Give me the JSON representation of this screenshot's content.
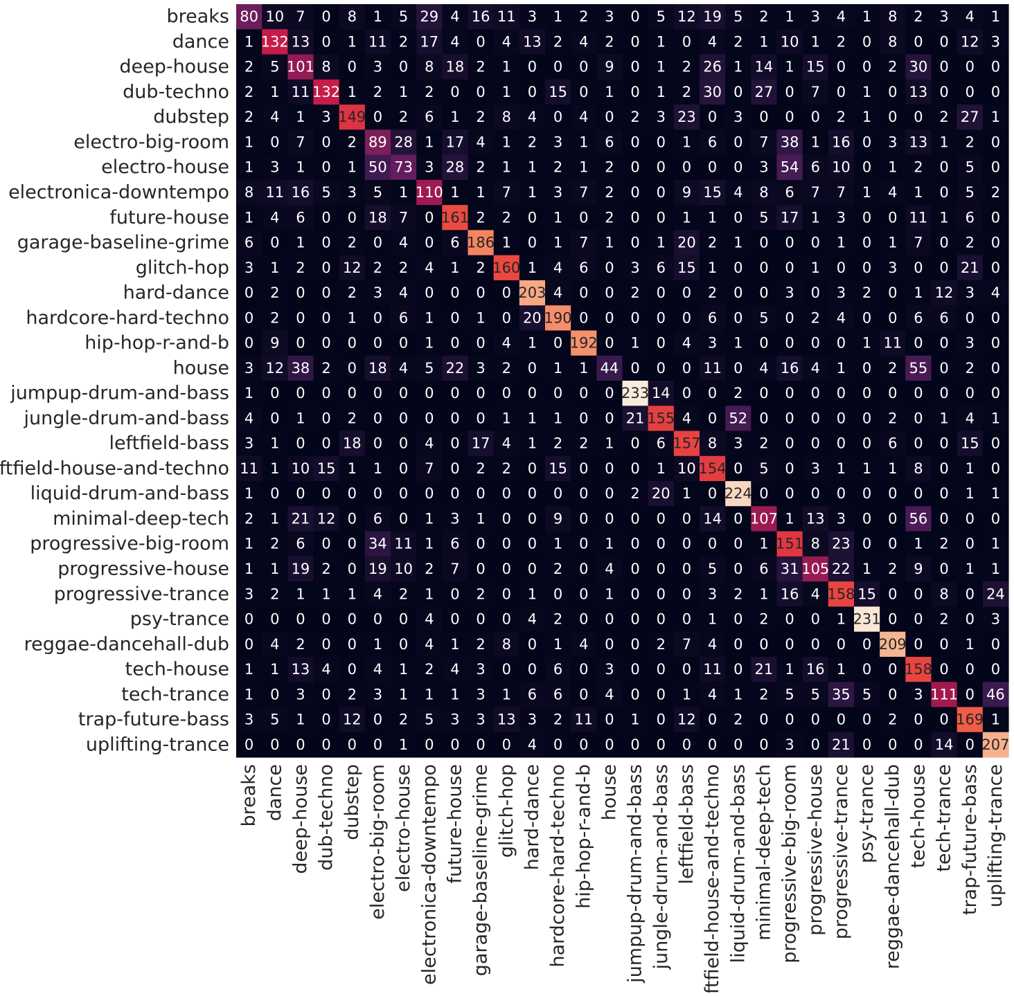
{
  "chart_data": {
    "type": "heatmap",
    "title": "",
    "xlabel": "",
    "ylabel": "",
    "colormap": "rocket",
    "colorbar": false,
    "vmin": 0,
    "vmax": 233,
    "row_labels": [
      "breaks",
      "dance",
      "deep-house",
      "dub-techno",
      "dubstep",
      "electro-big-room",
      "electro-house",
      "electronica-downtempo",
      "future-house",
      "garage-baseline-grime",
      "glitch-hop",
      "hard-dance",
      "hardcore-hard-techno",
      "hip-hop-r-and-b",
      "house",
      "jumpup-drum-and-bass",
      "jungle-drum-and-bass",
      "leftfield-bass",
      "leftfield-house-and-techno",
      "liquid-drum-and-bass",
      "minimal-deep-tech",
      "progressive-big-room",
      "progressive-house",
      "progressive-trance",
      "psy-trance",
      "reggae-dancehall-dub",
      "tech-house",
      "tech-trance",
      "trap-future-bass",
      "uplifting-trance"
    ],
    "col_labels": [
      "breaks",
      "dance",
      "deep-house",
      "dub-techno",
      "dubstep",
      "electro-big-room",
      "electro-house",
      "electronica-downtempo",
      "future-house",
      "garage-baseline-grime",
      "glitch-hop",
      "hard-dance",
      "hardcore-hard-techno",
      "hip-hop-r-and-b",
      "house",
      "jumpup-drum-and-bass",
      "jungle-drum-and-bass",
      "leftfield-bass",
      "leftfield-house-and-techno",
      "liquid-drum-and-bass",
      "minimal-deep-tech",
      "progressive-big-room",
      "progressive-house",
      "progressive-trance",
      "psy-trance",
      "reggae-dancehall-dub",
      "tech-house",
      "tech-trance",
      "trap-future-bass",
      "uplifting-trance"
    ],
    "values": [
      [
        80,
        10,
        7,
        0,
        8,
        1,
        5,
        29,
        4,
        16,
        11,
        3,
        1,
        2,
        3,
        0,
        5,
        12,
        19,
        5,
        2,
        1,
        3,
        4,
        1,
        8,
        2,
        3,
        4,
        1
      ],
      [
        1,
        132,
        13,
        0,
        1,
        11,
        2,
        17,
        4,
        0,
        4,
        13,
        2,
        4,
        2,
        0,
        1,
        0,
        4,
        2,
        1,
        10,
        1,
        2,
        0,
        8,
        0,
        0,
        12,
        3
      ],
      [
        2,
        5,
        101,
        8,
        0,
        3,
        0,
        8,
        18,
        2,
        1,
        0,
        0,
        0,
        9,
        0,
        1,
        2,
        26,
        1,
        14,
        1,
        15,
        0,
        0,
        2,
        30,
        0,
        0,
        0
      ],
      [
        2,
        1,
        11,
        132,
        1,
        2,
        1,
        2,
        0,
        0,
        1,
        0,
        15,
        0,
        1,
        0,
        1,
        2,
        30,
        0,
        27,
        0,
        7,
        0,
        1,
        0,
        13,
        0,
        0,
        0
      ],
      [
        2,
        4,
        1,
        3,
        149,
        0,
        2,
        6,
        1,
        2,
        8,
        4,
        0,
        4,
        0,
        2,
        3,
        23,
        0,
        3,
        0,
        0,
        0,
        2,
        1,
        0,
        0,
        2,
        27,
        1
      ],
      [
        1,
        0,
        7,
        0,
        2,
        89,
        28,
        1,
        17,
        4,
        1,
        2,
        3,
        1,
        6,
        0,
        0,
        1,
        6,
        0,
        7,
        38,
        1,
        16,
        0,
        3,
        13,
        1,
        2,
        0
      ],
      [
        1,
        3,
        1,
        0,
        1,
        50,
        73,
        3,
        28,
        2,
        1,
        1,
        2,
        1,
        2,
        0,
        0,
        0,
        0,
        0,
        3,
        54,
        6,
        10,
        0,
        1,
        2,
        0,
        5,
        0
      ],
      [
        8,
        11,
        16,
        5,
        3,
        5,
        1,
        110,
        1,
        1,
        7,
        1,
        3,
        7,
        2,
        0,
        0,
        9,
        15,
        4,
        8,
        6,
        7,
        7,
        1,
        4,
        1,
        0,
        5,
        2
      ],
      [
        1,
        4,
        6,
        0,
        0,
        18,
        7,
        0,
        161,
        2,
        2,
        0,
        1,
        0,
        2,
        0,
        0,
        1,
        1,
        0,
        5,
        17,
        1,
        3,
        0,
        0,
        11,
        1,
        6,
        0
      ],
      [
        6,
        0,
        1,
        0,
        2,
        0,
        4,
        0,
        6,
        186,
        1,
        0,
        1,
        7,
        1,
        0,
        1,
        20,
        2,
        1,
        0,
        0,
        0,
        1,
        0,
        1,
        7,
        0,
        2,
        0
      ],
      [
        3,
        1,
        2,
        0,
        12,
        2,
        2,
        4,
        1,
        2,
        160,
        1,
        4,
        6,
        0,
        3,
        6,
        15,
        1,
        0,
        0,
        0,
        1,
        0,
        0,
        3,
        0,
        0,
        21,
        0
      ],
      [
        0,
        2,
        0,
        0,
        2,
        3,
        4,
        0,
        0,
        0,
        0,
        203,
        4,
        0,
        0,
        2,
        0,
        0,
        2,
        0,
        0,
        3,
        0,
        3,
        2,
        0,
        1,
        12,
        3,
        4
      ],
      [
        0,
        2,
        0,
        0,
        1,
        0,
        6,
        1,
        0,
        1,
        0,
        20,
        190,
        0,
        0,
        0,
        0,
        0,
        6,
        0,
        5,
        0,
        2,
        4,
        0,
        0,
        6,
        6,
        0,
        0
      ],
      [
        0,
        9,
        0,
        0,
        0,
        0,
        0,
        1,
        0,
        0,
        4,
        1,
        0,
        192,
        0,
        1,
        0,
        4,
        3,
        1,
        0,
        0,
        0,
        0,
        1,
        11,
        0,
        0,
        3,
        0
      ],
      [
        3,
        12,
        38,
        2,
        0,
        18,
        4,
        5,
        22,
        3,
        2,
        0,
        1,
        1,
        44,
        0,
        0,
        0,
        11,
        0,
        4,
        16,
        4,
        1,
        0,
        2,
        55,
        0,
        2,
        0
      ],
      [
        1,
        0,
        0,
        0,
        0,
        0,
        0,
        0,
        0,
        0,
        0,
        0,
        0,
        0,
        0,
        233,
        14,
        0,
        0,
        2,
        0,
        0,
        0,
        0,
        0,
        0,
        0,
        0,
        0,
        0
      ],
      [
        4,
        0,
        1,
        0,
        2,
        0,
        0,
        0,
        0,
        0,
        1,
        1,
        1,
        0,
        0,
        21,
        155,
        4,
        0,
        52,
        0,
        0,
        0,
        0,
        0,
        2,
        0,
        1,
        4,
        1
      ],
      [
        3,
        1,
        0,
        0,
        18,
        0,
        0,
        4,
        0,
        17,
        4,
        1,
        2,
        2,
        1,
        0,
        6,
        157,
        8,
        3,
        2,
        0,
        0,
        0,
        0,
        6,
        0,
        0,
        15,
        0
      ],
      [
        11,
        1,
        10,
        15,
        1,
        1,
        0,
        7,
        0,
        2,
        2,
        0,
        15,
        0,
        0,
        0,
        1,
        10,
        154,
        0,
        5,
        0,
        3,
        1,
        1,
        1,
        8,
        0,
        1,
        0
      ],
      [
        1,
        0,
        0,
        0,
        0,
        0,
        0,
        0,
        0,
        0,
        0,
        0,
        0,
        0,
        0,
        2,
        20,
        1,
        0,
        224,
        0,
        0,
        0,
        0,
        0,
        0,
        0,
        0,
        1,
        1
      ],
      [
        2,
        1,
        21,
        12,
        0,
        6,
        0,
        1,
        3,
        1,
        0,
        0,
        9,
        0,
        0,
        0,
        0,
        0,
        14,
        0,
        107,
        1,
        13,
        3,
        0,
        0,
        56,
        0,
        0,
        0
      ],
      [
        1,
        2,
        6,
        0,
        0,
        34,
        11,
        1,
        6,
        0,
        0,
        0,
        1,
        0,
        1,
        0,
        0,
        0,
        0,
        0,
        1,
        151,
        8,
        23,
        0,
        0,
        1,
        2,
        0,
        1
      ],
      [
        1,
        1,
        19,
        2,
        0,
        19,
        10,
        2,
        7,
        0,
        0,
        0,
        2,
        0,
        4,
        0,
        0,
        0,
        5,
        0,
        6,
        31,
        105,
        22,
        1,
        2,
        9,
        0,
        1,
        1
      ],
      [
        3,
        2,
        1,
        1,
        1,
        4,
        2,
        1,
        0,
        2,
        0,
        1,
        0,
        0,
        1,
        0,
        0,
        0,
        3,
        2,
        1,
        16,
        4,
        158,
        15,
        0,
        0,
        8,
        0,
        24
      ],
      [
        0,
        0,
        0,
        0,
        0,
        0,
        0,
        4,
        0,
        0,
        0,
        4,
        2,
        0,
        0,
        0,
        0,
        0,
        1,
        0,
        2,
        0,
        0,
        1,
        231,
        0,
        0,
        2,
        0,
        3
      ],
      [
        0,
        4,
        2,
        0,
        0,
        1,
        0,
        4,
        1,
        2,
        8,
        0,
        1,
        4,
        0,
        0,
        2,
        7,
        4,
        0,
        0,
        0,
        0,
        0,
        0,
        209,
        0,
        0,
        1,
        0
      ],
      [
        1,
        1,
        13,
        4,
        0,
        4,
        1,
        2,
        4,
        3,
        0,
        0,
        6,
        0,
        3,
        0,
        0,
        0,
        11,
        0,
        21,
        1,
        16,
        1,
        0,
        0,
        158,
        0,
        0,
        0
      ],
      [
        1,
        0,
        3,
        0,
        2,
        3,
        1,
        1,
        1,
        3,
        1,
        6,
        6,
        0,
        4,
        0,
        0,
        1,
        4,
        1,
        2,
        5,
        5,
        35,
        5,
        0,
        3,
        111,
        0,
        46
      ],
      [
        3,
        5,
        1,
        0,
        12,
        0,
        2,
        5,
        3,
        3,
        13,
        3,
        2,
        11,
        0,
        1,
        0,
        12,
        0,
        2,
        0,
        0,
        0,
        0,
        0,
        2,
        0,
        0,
        169,
        1
      ],
      [
        0,
        0,
        0,
        0,
        0,
        0,
        1,
        0,
        0,
        0,
        0,
        4,
        0,
        0,
        0,
        0,
        0,
        0,
        0,
        0,
        0,
        3,
        0,
        21,
        0,
        0,
        0,
        14,
        0,
        207
      ]
    ],
    "annotations": true,
    "text_colors": {
      "dark": "#262626",
      "light": "#ffffff"
    }
  }
}
